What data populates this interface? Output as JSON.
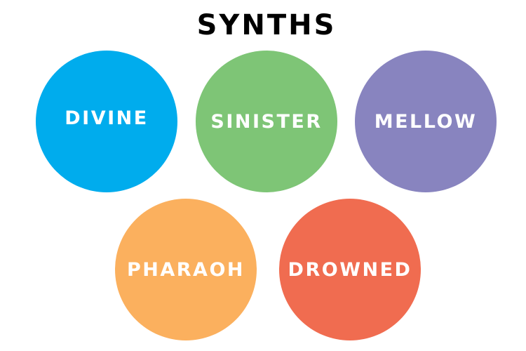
{
  "title": "SYNTHS",
  "circles": [
    {
      "label": "DIVINE",
      "color": "#00aced"
    },
    {
      "label": "SINISTER",
      "color": "#7ec576"
    },
    {
      "label": "MELLOW",
      "color": "#8884bf"
    },
    {
      "label": "PHARAOH",
      "color": "#fbb05e"
    },
    {
      "label": "DROWNED",
      "color": "#f06c50"
    }
  ]
}
